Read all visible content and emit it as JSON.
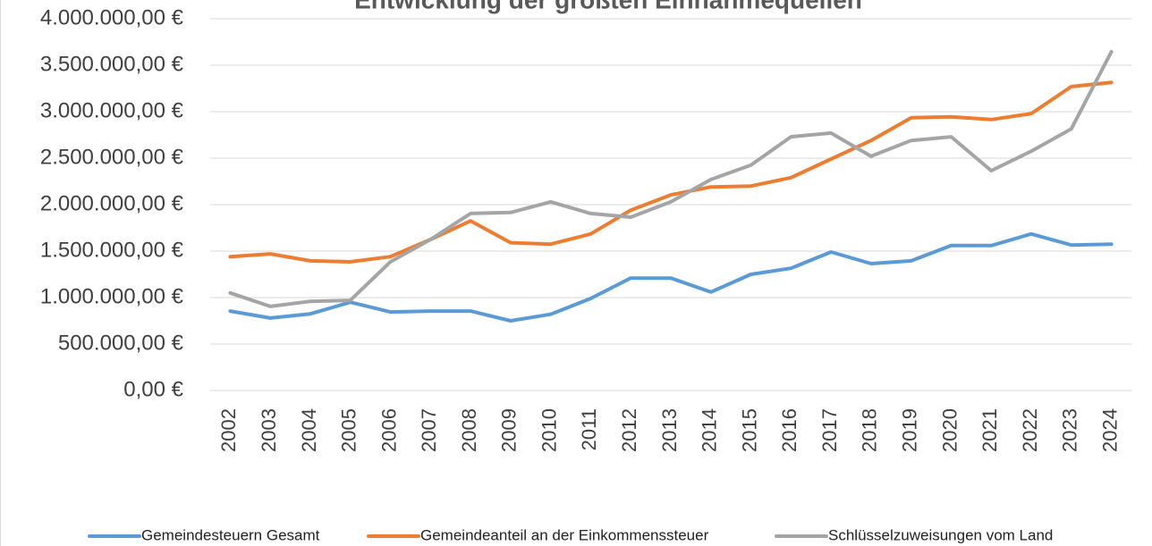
{
  "chart_data": {
    "type": "line",
    "title": "Entwicklung der größten Einnahmequellen",
    "categories": [
      "2002",
      "2003",
      "2004",
      "2005",
      "2006",
      "2007",
      "2008",
      "2009",
      "2010",
      "2011",
      "2012",
      "2013",
      "2014",
      "2015",
      "2016",
      "2017",
      "2018",
      "2019",
      "2020",
      "2021",
      "2022",
      "2023",
      "2024"
    ],
    "series": [
      {
        "name": "Gemeindesteuern Gesamt",
        "color": "#5b9bd5",
        "values": [
          855000,
          780000,
          825000,
          950000,
          845000,
          855000,
          855000,
          750000,
          820000,
          990000,
          1210000,
          1210000,
          1060000,
          1250000,
          1315000,
          1490000,
          1365000,
          1395000,
          1560000,
          1560000,
          1685000,
          1565000,
          1575000
        ]
      },
      {
        "name": "Gemeindeanteil an der Einkommenssteuer",
        "color": "#ed7d31",
        "values": [
          1440000,
          1470000,
          1395000,
          1385000,
          1440000,
          1625000,
          1825000,
          1590000,
          1575000,
          1685000,
          1940000,
          2105000,
          2190000,
          2200000,
          2290000,
          2490000,
          2690000,
          2935000,
          2945000,
          2915000,
          2980000,
          3270000,
          3315000
        ]
      },
      {
        "name": "Schlüsselzuweisungen vom Land",
        "color": "#a5a5a5",
        "values": [
          1050000,
          905000,
          960000,
          970000,
          1385000,
          1625000,
          1905000,
          1915000,
          2030000,
          1905000,
          1865000,
          2030000,
          2270000,
          2425000,
          2730000,
          2770000,
          2520000,
          2690000,
          2730000,
          2365000,
          2575000,
          2815000,
          3645000
        ]
      }
    ],
    "ylim": [
      0,
      4000000
    ],
    "yticks": [
      {
        "value": 0,
        "label": "0,00 €"
      },
      {
        "value": 500000,
        "label": "500.000,00 €"
      },
      {
        "value": 1000000,
        "label": "1.000.000,00 €"
      },
      {
        "value": 1500000,
        "label": "1.500.000,00 €"
      },
      {
        "value": 2000000,
        "label": "2.000.000,00 €"
      },
      {
        "value": 2500000,
        "label": "2.500.000,00 €"
      },
      {
        "value": 3000000,
        "label": "3.000.000,00 €"
      },
      {
        "value": 3500000,
        "label": "3.500.000,00 €"
      },
      {
        "value": 4000000,
        "label": "4.000.000,00 €"
      }
    ],
    "grid": true,
    "legend": "bottom"
  }
}
